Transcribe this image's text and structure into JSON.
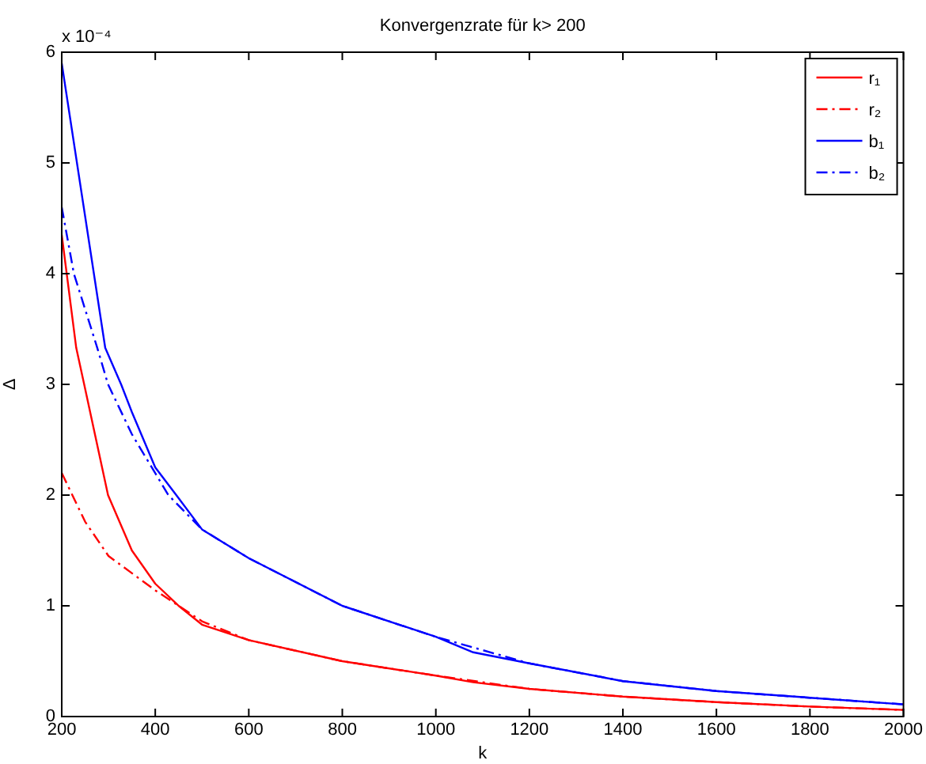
{
  "chart_data": {
    "type": "line",
    "title": "Konvergenzrate für k> 200",
    "xlabel": "k",
    "ylabel": "Δ",
    "annotations": [
      "x 10⁻⁴"
    ],
    "xlim": [
      200,
      2000
    ],
    "xticks": [
      200,
      400,
      600,
      800,
      1000,
      1200,
      1400,
      1600,
      1800,
      2000
    ],
    "ylim": [
      0,
      6
    ],
    "yticks": [
      0,
      1,
      2,
      3,
      4,
      5,
      6
    ],
    "grid": false,
    "legend": "top right",
    "marker": "none",
    "series": [
      {
        "name": "r₁",
        "color": "#ff0000",
        "line_style": "solid",
        "x": [
          200,
          231,
          248,
          299,
          350,
          400,
          450,
          500,
          600,
          800,
          1000,
          1080,
          1200,
          1400,
          1600,
          1800,
          2000
        ],
        "values": [
          4.35,
          3.33,
          3.0,
          2.0,
          1.5,
          1.2,
          1.0,
          0.83,
          0.69,
          0.5,
          0.37,
          0.31,
          0.25,
          0.18,
          0.13,
          0.09,
          0.06
        ]
      },
      {
        "name": "r₂",
        "color": "#ff0000",
        "line_style": "dashdot",
        "x": [
          200,
          250,
          300,
          400,
          500,
          600,
          800,
          1000,
          1200,
          1400,
          1600,
          1800,
          2000
        ],
        "values": [
          2.2,
          1.76,
          1.45,
          1.14,
          0.86,
          0.69,
          0.5,
          0.37,
          0.25,
          0.18,
          0.13,
          0.09,
          0.06
        ]
      },
      {
        "name": "b₁",
        "color": "#0000ff",
        "line_style": "solid",
        "x": [
          200,
          293,
          327,
          350,
          400,
          445,
          500,
          600,
          800,
          1000,
          1080,
          1200,
          1400,
          1600,
          1800,
          2000
        ],
        "values": [
          5.9,
          3.33,
          3.0,
          2.75,
          2.25,
          2.0,
          1.69,
          1.43,
          1.0,
          0.72,
          0.58,
          0.48,
          0.32,
          0.23,
          0.17,
          0.11
        ]
      },
      {
        "name": "b₂",
        "color": "#0000ff",
        "line_style": "dashdot",
        "x": [
          200,
          226,
          276,
          299,
          350,
          428,
          500,
          600,
          800,
          1000,
          1200,
          1400,
          1600,
          1800,
          2000
        ],
        "values": [
          4.6,
          4.0,
          3.33,
          3.0,
          2.55,
          2.0,
          1.69,
          1.43,
          1.0,
          0.72,
          0.48,
          0.32,
          0.23,
          0.17,
          0.11
        ]
      }
    ]
  }
}
